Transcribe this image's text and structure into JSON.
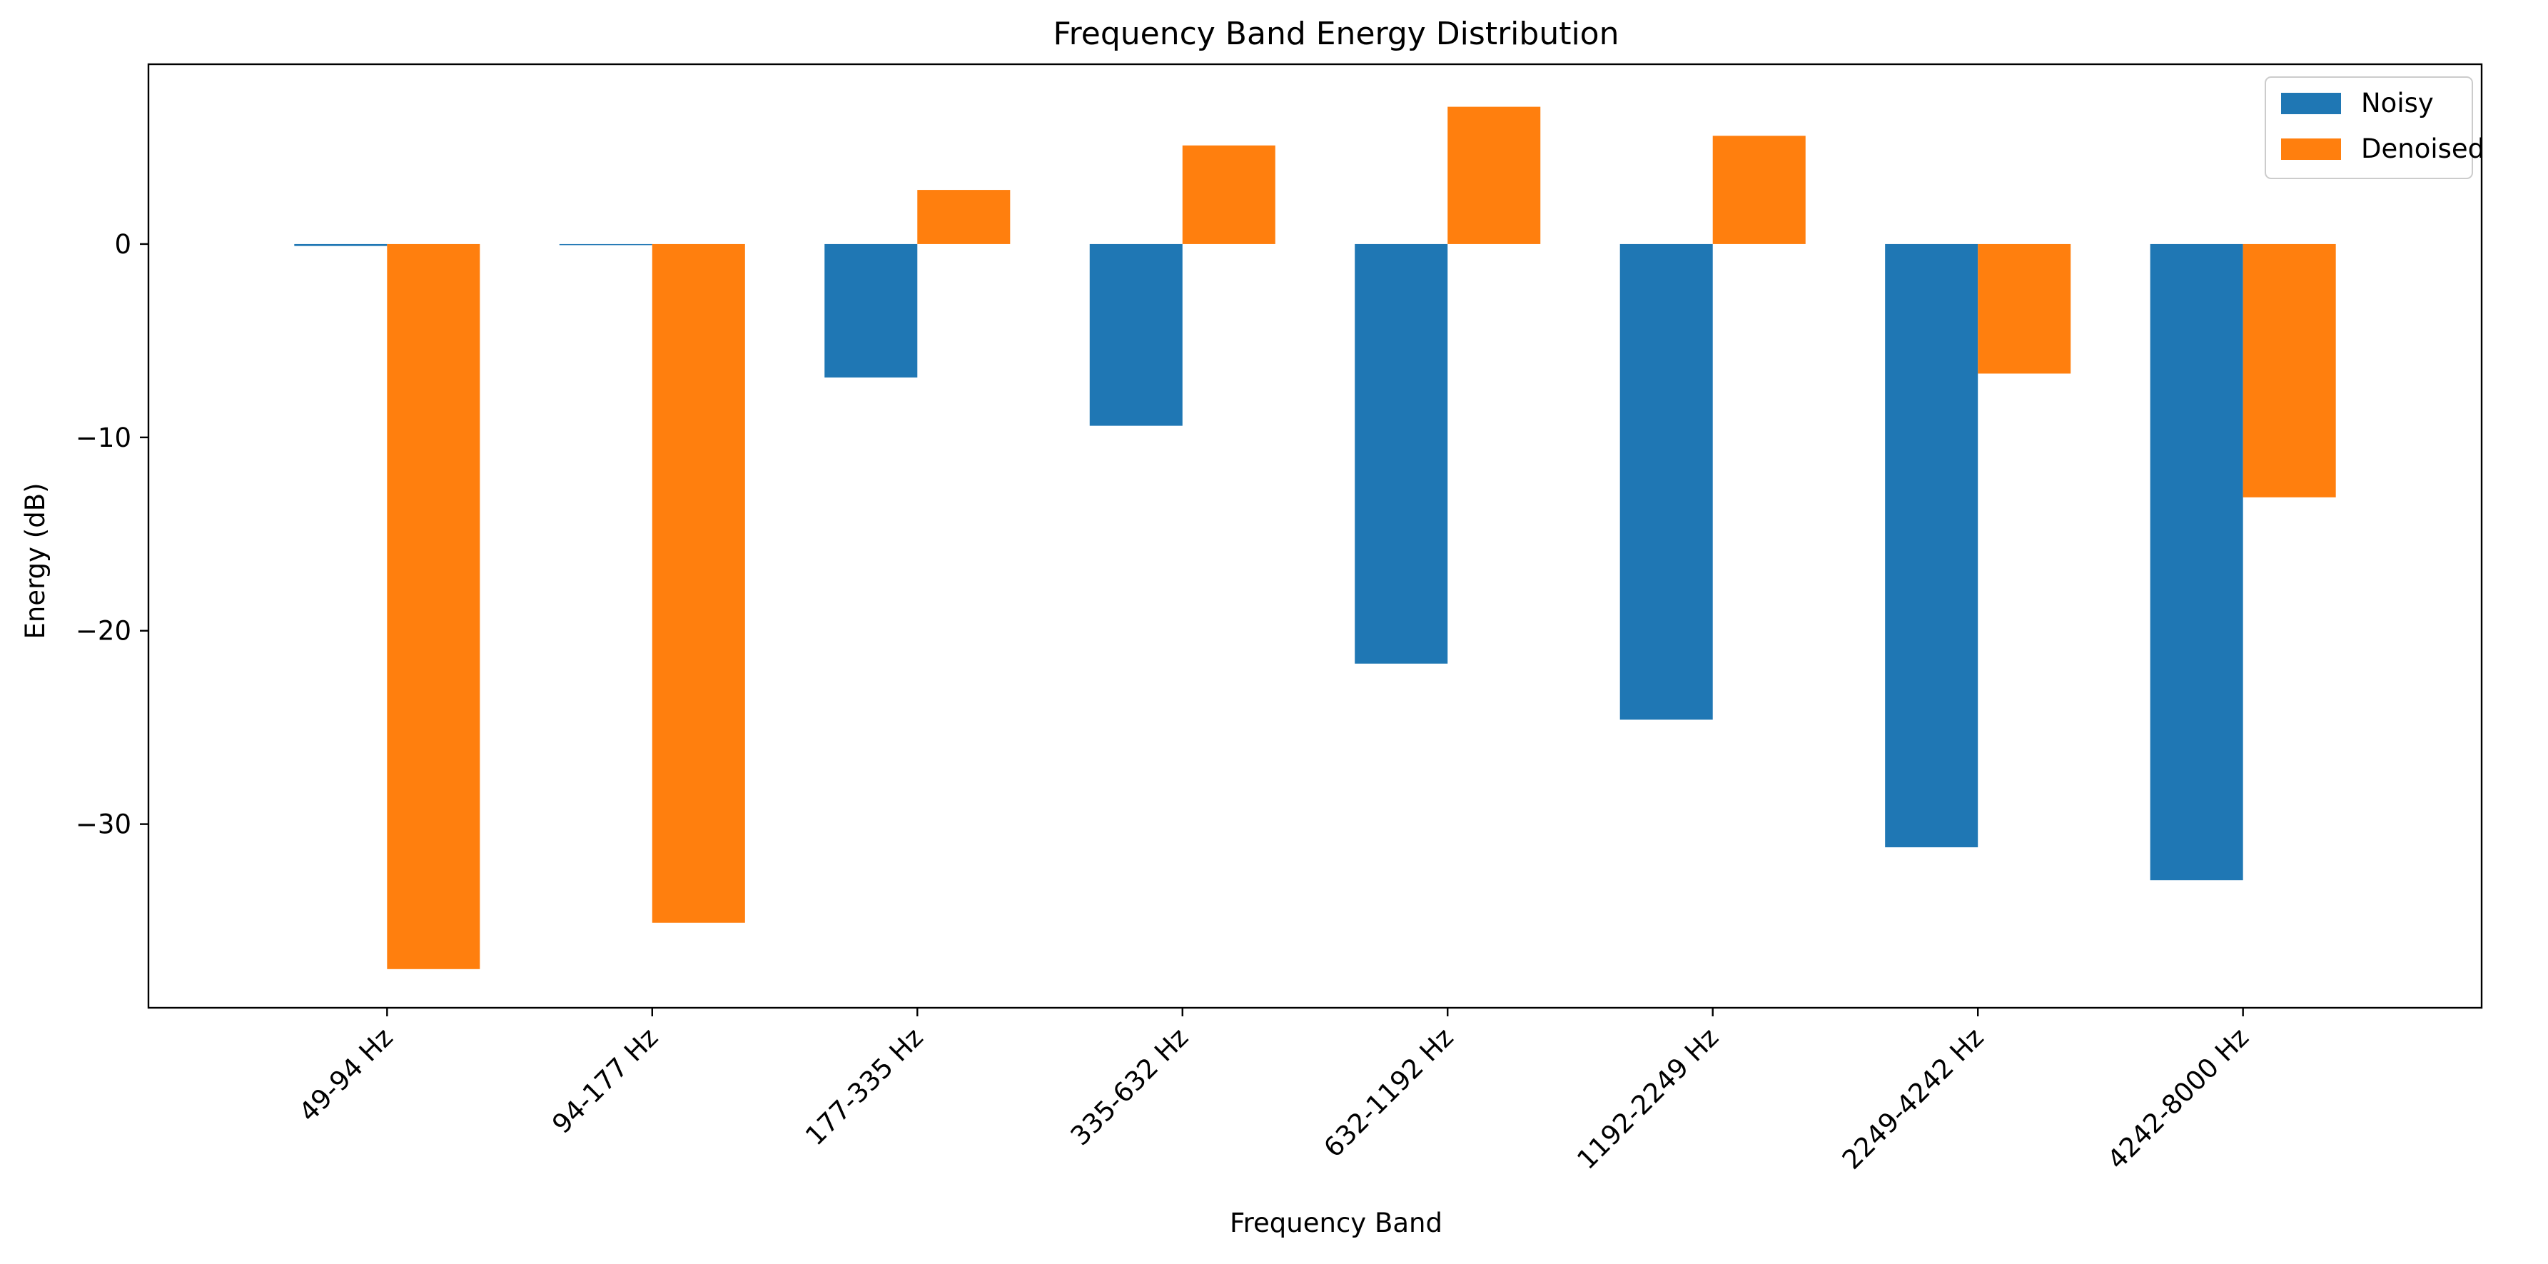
{
  "chart_data": {
    "type": "bar",
    "title": "Frequency Band Energy Distribution",
    "xlabel": "Frequency Band",
    "ylabel": "Energy (dB)",
    "categories": [
      "49-94 Hz",
      "94-177 Hz",
      "177-335 Hz",
      "335-632 Hz",
      "632-1192 Hz",
      "1192-2249 Hz",
      "2249-4242 Hz",
      "4242-8000 Hz"
    ],
    "series": [
      {
        "name": "Noisy",
        "color": "#1f77b4",
        "values": [
          -0.1,
          0.0,
          -6.9,
          -9.4,
          -21.7,
          -24.6,
          -31.2,
          -32.9
        ]
      },
      {
        "name": "Denoised",
        "color": "#ff7f0e",
        "values": [
          -37.5,
          -35.1,
          2.8,
          5.1,
          7.1,
          5.6,
          -6.7,
          -13.1
        ]
      }
    ],
    "ylim": [
      -39.5,
      9.3
    ],
    "yticks": [
      0,
      -10,
      -20,
      -30
    ],
    "ytick_labels": [
      "0",
      "−10",
      "−20",
      "−30"
    ],
    "grid": false,
    "legend": "top-right"
  }
}
